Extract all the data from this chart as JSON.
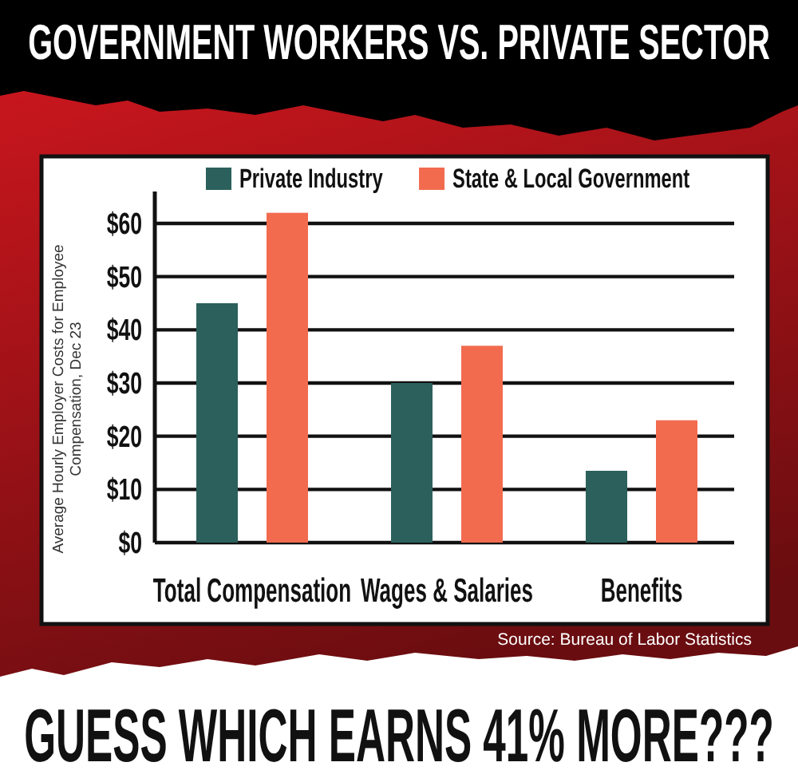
{
  "chart_data": {
    "type": "bar",
    "title": "GOVERNMENT WORKERS VS. PRIVATE SECTOR",
    "ylabel": "Average Hourly Employer Costs for Employee Compensation, Dec 23",
    "categories": [
      "Total Compensation",
      "Wages & Salaries",
      "Benefits"
    ],
    "series": [
      {
        "name": "Private Industry",
        "color": "#2b605c",
        "values": [
          45,
          30,
          13.5
        ]
      },
      {
        "name": "State & Local Government",
        "color": "#f26b4f",
        "values": [
          62,
          37,
          23
        ]
      }
    ],
    "ylim": [
      0,
      66
    ],
    "yticks": [
      {
        "value": 0,
        "label": "$0"
      },
      {
        "value": 10,
        "label": "$10"
      },
      {
        "value": 20,
        "label": "$20"
      },
      {
        "value": 30,
        "label": "$30"
      },
      {
        "value": 40,
        "label": "$40"
      },
      {
        "value": 50,
        "label": "$50"
      },
      {
        "value": 60,
        "label": "$60"
      }
    ],
    "grid": "y",
    "legend": "top",
    "annotations": [
      "Source: Bureau of Labor Statistics",
      "GUESS WHICH EARNS 41% MORE???"
    ]
  }
}
